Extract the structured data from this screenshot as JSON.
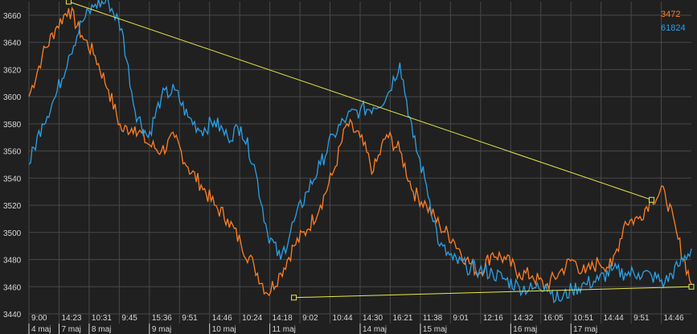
{
  "colors": {
    "background": "#202020",
    "grid": "#484848",
    "axis_text": "#d8d8d8",
    "series_orange": "#ff7f27",
    "series_blue": "#2ca0e6",
    "trendline": "#e8e84a"
  },
  "chart_data": {
    "type": "line",
    "ylim": [
      3440,
      3670
    ],
    "y_ticks": [
      3440,
      3460,
      3480,
      3500,
      3520,
      3540,
      3560,
      3580,
      3600,
      3620,
      3640,
      3660
    ],
    "y_tick_labels": [
      "3440",
      "3460",
      "3480",
      "3500",
      "3520",
      "3540",
      "3560",
      "3580",
      "3600",
      "3620",
      "3640",
      "3660"
    ],
    "x_time_labels": [
      "9:00",
      "14:23",
      "10:31",
      "9:45",
      "15:36",
      "9:51",
      "14:46",
      "10:24",
      "14:18",
      "9:02",
      "10:44",
      "14:30",
      "16:21",
      "11:38",
      "9:01",
      "12:16",
      "14:32",
      "16:05",
      "10:51",
      "14:44",
      "9:51",
      "14:46"
    ],
    "x_date_labels": [
      "4 maj",
      "7 maj",
      "8 maj",
      "9 maj",
      "10 maj",
      "11 maj",
      "14 maj",
      "15 maj",
      "16 maj",
      "17 maj"
    ],
    "legend": [
      {
        "label": "3472",
        "color": "#ff7f27"
      },
      {
        "label": "61824",
        "color": "#2ca0e6"
      }
    ],
    "series": [
      {
        "color": "#ff7f27",
        "x": [
          0,
          2,
          4,
          6,
          8,
          10,
          12,
          14,
          16,
          18,
          20,
          22,
          24,
          26,
          28,
          30,
          32,
          34,
          36,
          38,
          40,
          42,
          44,
          46,
          48,
          50,
          52,
          54,
          56,
          58,
          60,
          62,
          64,
          66,
          68,
          70,
          72,
          74,
          76,
          78,
          80,
          82,
          84,
          86,
          88,
          90,
          92,
          94,
          96,
          98,
          100
        ],
        "values": [
          3600,
          3630,
          3650,
          3665,
          3645,
          3630,
          3605,
          3575,
          3578,
          3565,
          3560,
          3570,
          3548,
          3535,
          3520,
          3510,
          3492,
          3475,
          3455,
          3470,
          3490,
          3502,
          3520,
          3545,
          3580,
          3570,
          3545,
          3572,
          3560,
          3530,
          3520,
          3505,
          3495,
          3480,
          3470,
          3485,
          3480,
          3470,
          3468,
          3460,
          3470,
          3480,
          3470,
          3478,
          3475,
          3508,
          3510,
          3525,
          3530,
          3495,
          3462
        ]
      },
      {
        "color": "#2ca0e6",
        "x": [
          0,
          2,
          4,
          6,
          8,
          10,
          12,
          14,
          16,
          18,
          20,
          22,
          24,
          26,
          28,
          30,
          32,
          34,
          36,
          38,
          40,
          42,
          44,
          46,
          48,
          50,
          52,
          54,
          56,
          58,
          60,
          62,
          64,
          66,
          68,
          70,
          72,
          74,
          76,
          78,
          80,
          82,
          84,
          86,
          88,
          90,
          92,
          94,
          96,
          98,
          100
        ],
        "values": [
          3550,
          3580,
          3600,
          3630,
          3655,
          3668,
          3670,
          3650,
          3590,
          3570,
          3600,
          3605,
          3585,
          3575,
          3582,
          3570,
          3578,
          3550,
          3500,
          3480,
          3508,
          3530,
          3550,
          3572,
          3585,
          3590,
          3592,
          3600,
          3625,
          3570,
          3535,
          3490,
          3480,
          3475,
          3472,
          3470,
          3465,
          3460,
          3458,
          3462,
          3450,
          3458,
          3462,
          3465,
          3472,
          3470,
          3470,
          3468,
          3463,
          3475,
          3488
        ]
      }
    ],
    "trendlines": [
      {
        "x": [
          6,
          94
        ],
        "values": [
          3670,
          3524
        ]
      },
      {
        "x": [
          40,
          100
        ],
        "values": [
          3452,
          3460
        ]
      }
    ]
  }
}
